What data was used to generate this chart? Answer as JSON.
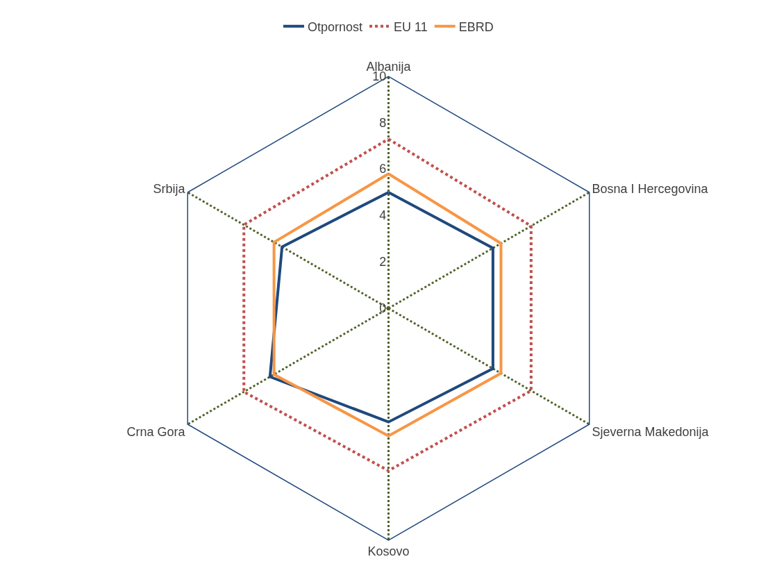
{
  "chart_data": {
    "type": "radar",
    "categories": [
      "Albanija",
      "Bosna I Hercegovina",
      "Sjeverna Makedonija",
      "Kosovo",
      "Crna Gora",
      "Srbija"
    ],
    "series": [
      {
        "name": "Otpornost",
        "color": "#1f497d",
        "values": [
          5.0,
          5.2,
          5.2,
          4.9,
          5.9,
          5.3
        ],
        "line_style": "solid"
      },
      {
        "name": "EU 11",
        "color": "#c0504d",
        "values": [
          7.3,
          7.1,
          7.1,
          7.0,
          7.2,
          7.2
        ],
        "line_style": "dotted"
      },
      {
        "name": "EBRD",
        "color": "#f79646",
        "values": [
          5.8,
          5.6,
          5.6,
          5.5,
          5.7,
          5.7
        ],
        "line_style": "solid"
      }
    ],
    "ylim": [
      0,
      10
    ],
    "yticks": [
      0,
      2,
      4,
      6,
      8,
      10
    ],
    "grid": true,
    "legend": "top",
    "marker": "none"
  }
}
